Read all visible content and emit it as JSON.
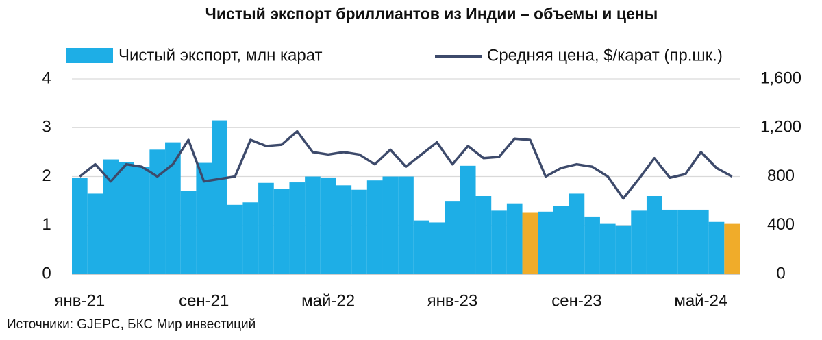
{
  "chart_data": {
    "type": "bar_line",
    "title": "Чистый экспорт бриллиантов из Индии – объемы и цены",
    "source": "Источники: GJEPC, БКС Мир инвестиций",
    "categories": [
      "янв-21",
      null,
      null,
      null,
      null,
      null,
      null,
      null,
      "сен-21",
      null,
      null,
      null,
      null,
      null,
      null,
      null,
      "май-22",
      null,
      null,
      null,
      null,
      null,
      null,
      null,
      "янв-23",
      null,
      null,
      null,
      null,
      null,
      null,
      null,
      "сен-23",
      null,
      null,
      null,
      null,
      null,
      null,
      null,
      "май-24",
      null,
      null
    ],
    "series": [
      {
        "name": "Чистый экспорт, млн карат",
        "type": "bar",
        "color": "#1eaee6",
        "colors": [
          "#1eaee6",
          "#1eaee6",
          "#1eaee6",
          "#1eaee6",
          "#1eaee6",
          "#1eaee6",
          "#1eaee6",
          "#1eaee6",
          "#1eaee6",
          "#1eaee6",
          "#1eaee6",
          "#1eaee6",
          "#1eaee6",
          "#1eaee6",
          "#1eaee6",
          "#1eaee6",
          "#1eaee6",
          "#1eaee6",
          "#1eaee6",
          "#1eaee6",
          "#1eaee6",
          "#1eaee6",
          "#1eaee6",
          "#1eaee6",
          "#1eaee6",
          "#1eaee6",
          "#1eaee6",
          "#1eaee6",
          "#1eaee6",
          "#f0ac2a",
          "#1eaee6",
          "#1eaee6",
          "#1eaee6",
          "#1eaee6",
          "#1eaee6",
          "#1eaee6",
          "#1eaee6",
          "#1eaee6",
          "#1eaee6",
          "#1eaee6",
          "#1eaee6",
          "#1eaee6",
          "#f0ac2a"
        ],
        "values": [
          1.97,
          1.65,
          2.35,
          2.3,
          2.2,
          2.55,
          2.7,
          1.7,
          2.28,
          3.15,
          1.42,
          1.47,
          1.87,
          1.75,
          1.88,
          2.0,
          1.98,
          1.82,
          1.73,
          1.92,
          2.0,
          2.0,
          1.1,
          1.06,
          1.5,
          2.22,
          1.6,
          1.3,
          1.45,
          1.27,
          1.28,
          1.4,
          1.65,
          1.18,
          1.03,
          1.0,
          1.3,
          1.6,
          1.32,
          1.32,
          1.32,
          1.07,
          1.03
        ]
      },
      {
        "name": "Средняя цена, $/карат (пр.шк.)",
        "type": "line",
        "axis": "y2",
        "color": "#3d4a6b",
        "values": [
          800,
          900,
          760,
          900,
          880,
          800,
          900,
          1100,
          760,
          780,
          800,
          1100,
          1050,
          1060,
          1170,
          1000,
          980,
          1000,
          980,
          900,
          1020,
          880,
          980,
          1080,
          900,
          1050,
          950,
          960,
          1110,
          1100,
          800,
          870,
          900,
          880,
          800,
          620,
          780,
          950,
          790,
          820,
          1000,
          870,
          800
        ]
      }
    ],
    "ylim": [
      0,
      4
    ],
    "yticks": [
      0,
      1,
      2,
      3,
      4
    ],
    "y2lim": [
      0,
      1600
    ],
    "y2ticks": [
      0,
      {
        "value": 400,
        "label": "400"
      },
      {
        "value": 800,
        "label": "800"
      },
      {
        "value": 1200,
        "label": "1,200"
      },
      {
        "value": 1600,
        "label": "1,600"
      }
    ],
    "grid": true
  }
}
